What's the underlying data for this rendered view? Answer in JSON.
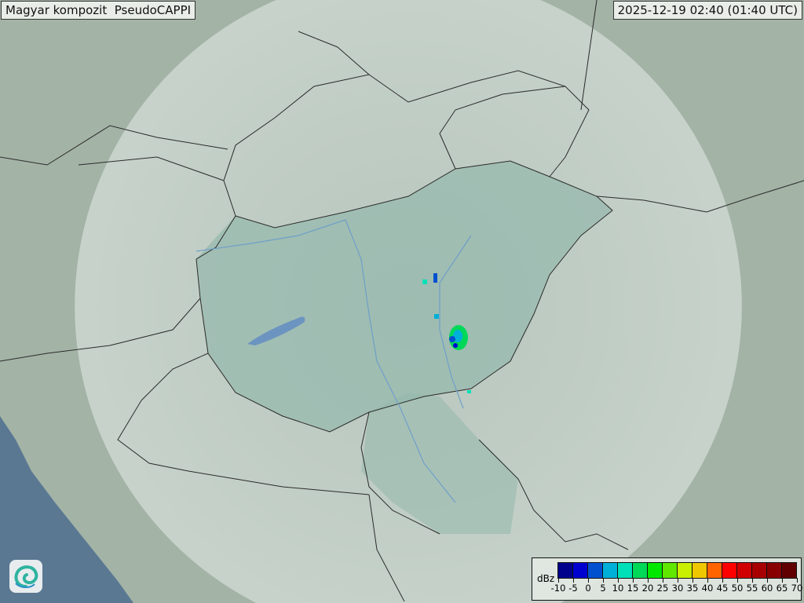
{
  "title": "Magyar kompozit  PseudoCAPPI",
  "timestamp": "2025-12-19 02:40 (01:40 UTC)",
  "legend": {
    "unit": "dBz",
    "ticks": [
      "-10",
      "-5",
      "0",
      "5",
      "10",
      "15",
      "20",
      "25",
      "30",
      "35",
      "40",
      "45",
      "50",
      "55",
      "60",
      "65",
      "70"
    ],
    "colors": [
      "#00008c",
      "#0000d0",
      "#0050d0",
      "#00b0d8",
      "#00e0b8",
      "#00d858",
      "#00e800",
      "#60e800",
      "#c8f000",
      "#f0c800",
      "#ff6400",
      "#ff0000",
      "#d00000",
      "#a80000",
      "#880000",
      "#600000"
    ]
  },
  "logo": {
    "icon": "spiral-logo-icon"
  },
  "colors": {
    "land": "#a3b3a6",
    "coverage": "#c9d6d0",
    "hungary": "#94b8ac",
    "sea": "#5a7892",
    "border": "#2b2b2b",
    "river": "#6f9fc8"
  }
}
